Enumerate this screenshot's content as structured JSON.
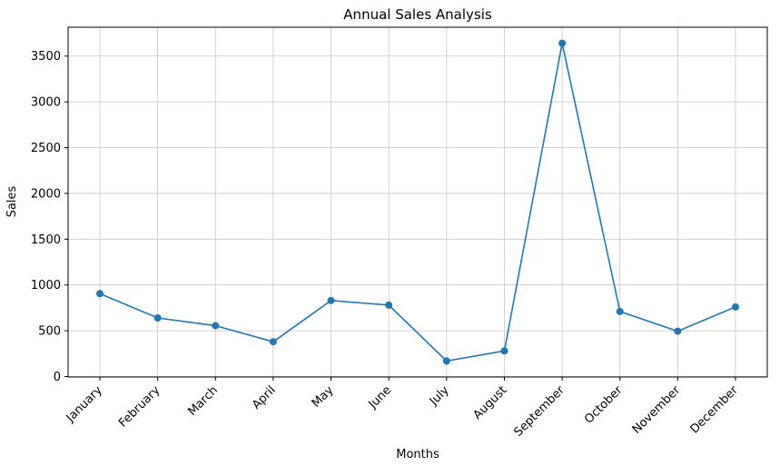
{
  "chart_data": {
    "type": "line",
    "title": "Annual Sales Analysis",
    "xlabel": "Months",
    "ylabel": "Sales",
    "categories": [
      "January",
      "February",
      "March",
      "April",
      "May",
      "June",
      "July",
      "August",
      "September",
      "October",
      "November",
      "December"
    ],
    "values": [
      905,
      640,
      555,
      380,
      830,
      780,
      170,
      280,
      3640,
      710,
      495,
      760
    ],
    "yticks": [
      0,
      500,
      1000,
      1500,
      2000,
      2500,
      3000,
      3500
    ],
    "ylim": [
      -5,
      3815
    ],
    "xlim": [
      -0.55,
      11.55
    ],
    "grid": true,
    "legend": "none",
    "line_color": "#1f77b4",
    "marker": "circle",
    "grid_color": "#c6c6c6",
    "axis_color": "#000000",
    "x_tick_rotation": 45
  }
}
